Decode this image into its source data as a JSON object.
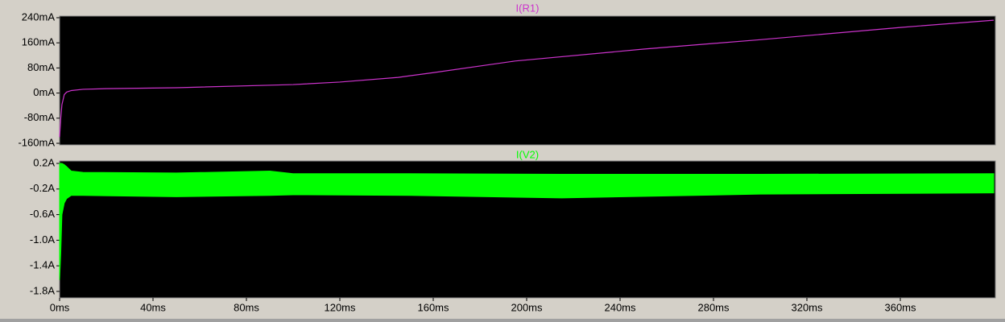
{
  "chart_data": [
    {
      "type": "line",
      "title": "I(R1)",
      "color": "#cc33cc",
      "x": [
        0,
        0.5,
        1,
        2,
        3,
        5,
        10,
        20,
        50,
        100,
        120,
        145,
        160,
        195,
        250,
        300,
        360,
        400
      ],
      "values": [
        -140,
        -80,
        -37,
        -5,
        3,
        8,
        12,
        14,
        17,
        27,
        35,
        50,
        65,
        102,
        140,
        170,
        209,
        232
      ],
      "xlim": [
        0,
        400
      ],
      "ylim": [
        -160,
        240
      ],
      "yticks": [
        {
          "value": 240,
          "label": "240mA"
        },
        {
          "value": 160,
          "label": "160mA"
        },
        {
          "value": 80,
          "label": "80mA"
        },
        {
          "value": 0,
          "label": "0mA"
        },
        {
          "value": -80,
          "label": "-80mA"
        },
        {
          "value": -160,
          "label": "-160mA"
        }
      ],
      "grid": false
    },
    {
      "type": "band",
      "title": "I(V2)",
      "color": "#00ff00",
      "x": [
        0,
        0.5,
        1,
        2,
        3,
        5,
        10,
        50,
        90,
        100,
        150,
        215,
        300,
        400
      ],
      "upper": [
        0.2,
        0.2,
        0.2,
        0.18,
        0.15,
        0.08,
        0.06,
        0.05,
        0.08,
        0.04,
        0.04,
        0.03,
        0.03,
        0.04
      ],
      "lower": [
        -1.62,
        -1.2,
        -0.6,
        -0.42,
        -0.35,
        -0.3,
        -0.3,
        -0.32,
        -0.3,
        -0.29,
        -0.3,
        -0.34,
        -0.28,
        -0.26
      ],
      "xlim": [
        0,
        400
      ],
      "xticks": [
        {
          "value": 0,
          "label": "0ms"
        },
        {
          "value": 40,
          "label": "40ms"
        },
        {
          "value": 80,
          "label": "80ms"
        },
        {
          "value": 120,
          "label": "120ms"
        },
        {
          "value": 160,
          "label": "160ms"
        },
        {
          "value": 200,
          "label": "200ms"
        },
        {
          "value": 240,
          "label": "240ms"
        },
        {
          "value": 280,
          "label": "280ms"
        },
        {
          "value": 320,
          "label": "320ms"
        },
        {
          "value": 360,
          "label": "360ms"
        }
      ],
      "ylim": [
        -1.8,
        0.2
      ],
      "yticks": [
        {
          "value": 0.2,
          "label": "0.2A"
        },
        {
          "value": -0.2,
          "label": "-0.2A"
        },
        {
          "value": -0.6,
          "label": "-0.6A"
        },
        {
          "value": -1.0,
          "label": "-1.0A"
        },
        {
          "value": -1.4,
          "label": "-1.4A"
        },
        {
          "value": -1.8,
          "label": "-1.8A"
        }
      ],
      "grid": false
    }
  ]
}
